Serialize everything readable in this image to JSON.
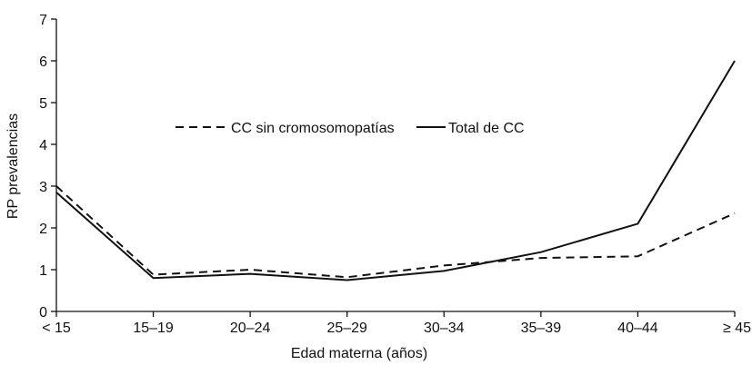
{
  "chart_data": {
    "type": "line",
    "categories": [
      "< 15",
      "15–19",
      "20–24",
      "25–29",
      "30–34",
      "35–39",
      "40–44",
      "≥ 45"
    ],
    "series": [
      {
        "name": "CC sin cromosomopatías",
        "style": "dashed",
        "values": [
          3.0,
          0.88,
          1.0,
          0.82,
          1.1,
          1.28,
          1.32,
          2.35
        ]
      },
      {
        "name": "Total de CC",
        "style": "solid",
        "values": [
          2.85,
          0.8,
          0.9,
          0.75,
          0.97,
          1.42,
          2.1,
          6.0
        ]
      }
    ],
    "xlabel": "Edad materna (años)",
    "ylabel": "RP prevalencias",
    "ylim": [
      0,
      7
    ],
    "yticks": [
      0,
      1,
      2,
      3,
      4,
      5,
      6,
      7
    ],
    "grid": false,
    "legend_position": "top-center",
    "line_color": "#111111"
  }
}
